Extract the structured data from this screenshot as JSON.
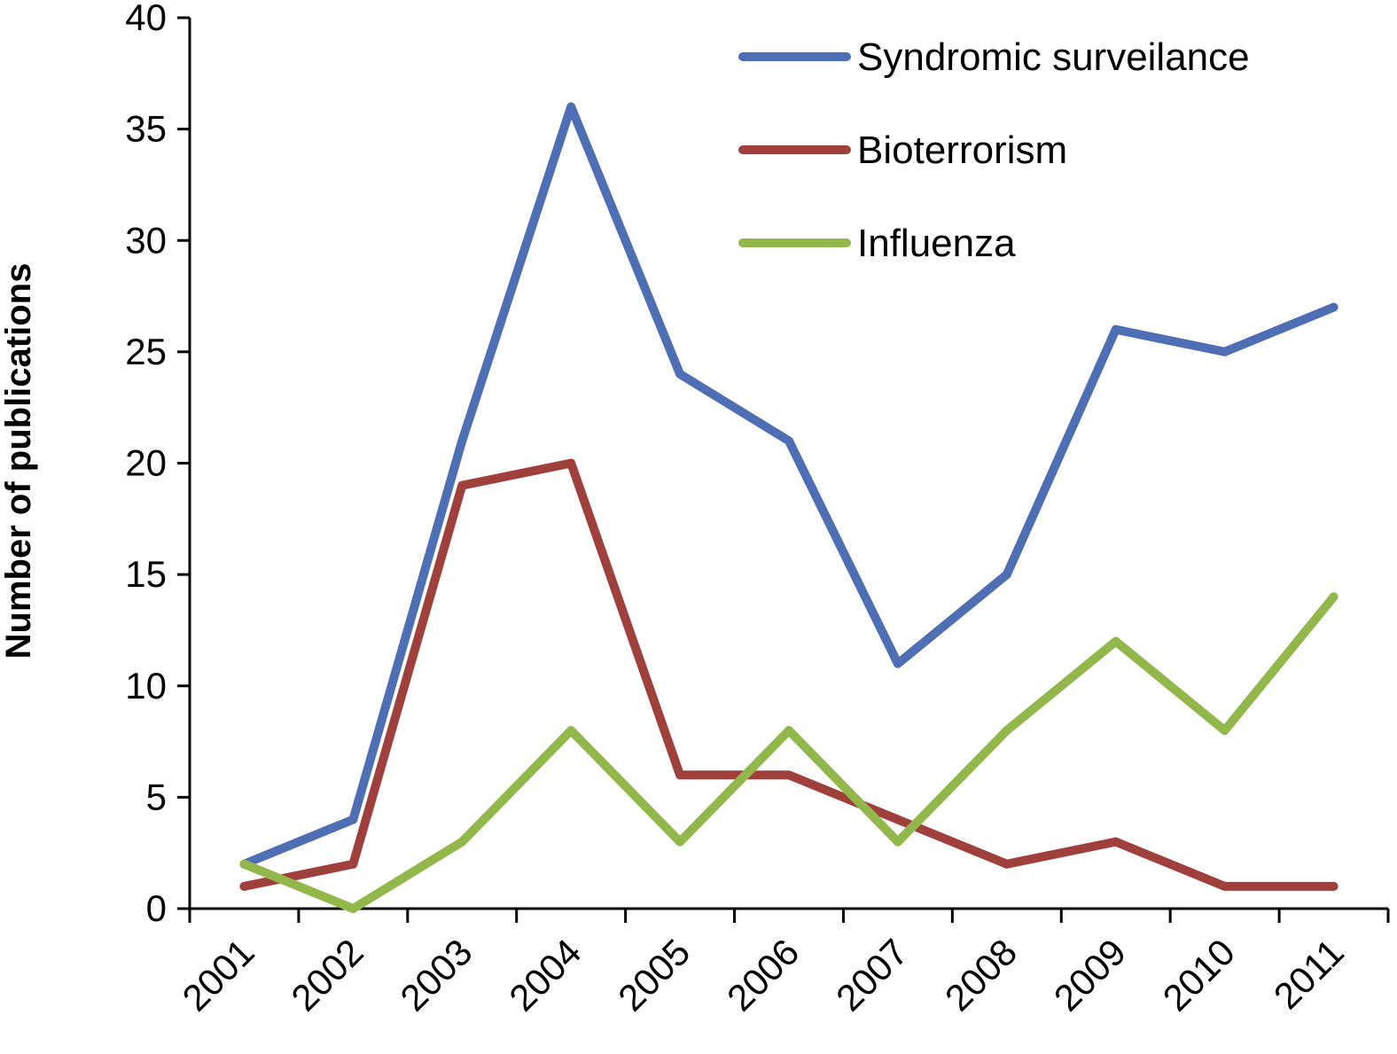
{
  "chart_data": {
    "type": "line",
    "title": "",
    "xlabel": "",
    "ylabel": "Number of publications",
    "categories": [
      "2001",
      "2002",
      "2003",
      "2004",
      "2005",
      "2006",
      "2007",
      "2008",
      "2009",
      "2010",
      "2011"
    ],
    "ylim": [
      0,
      40
    ],
    "yticks": [
      0,
      5,
      10,
      15,
      20,
      25,
      30,
      35,
      40
    ],
    "grid": false,
    "legend_position": "top-right",
    "series": [
      {
        "name": "Syndromic surveilance",
        "color": "#4F6FB5",
        "values": [
          2,
          4,
          21,
          36,
          24,
          21,
          11,
          15,
          26,
          25,
          27
        ]
      },
      {
        "name": "Bioterrorism",
        "color": "#A0403D",
        "values": [
          1,
          2,
          19,
          20,
          6,
          6,
          4,
          2,
          3,
          1,
          1
        ]
      },
      {
        "name": "Influenza",
        "color": "#92B74B",
        "values": [
          2,
          0,
          3,
          8,
          3,
          8,
          3,
          8,
          12,
          8,
          14
        ]
      }
    ]
  }
}
